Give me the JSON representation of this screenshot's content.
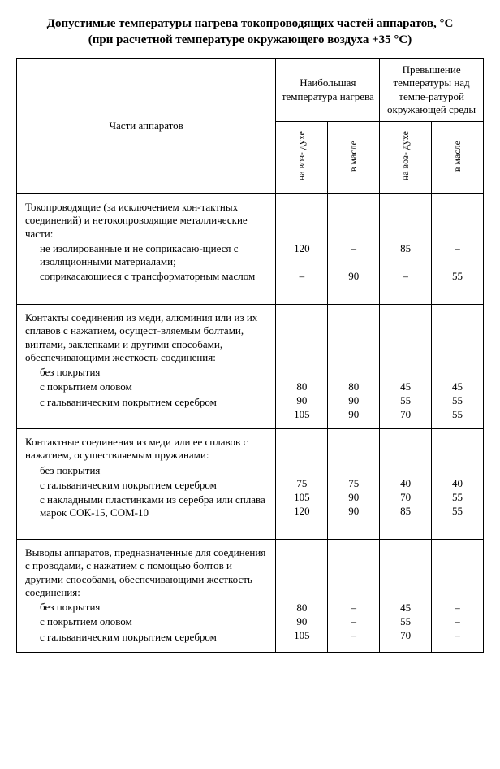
{
  "title_line1": "Допустимые температуры нагрева токопроводящих частей аппаратов, °С",
  "title_line2": "(при расчетной температуре окружающего воздуха +35 °С)",
  "headers": {
    "parts": "Части аппаратов",
    "group_max": "Наибольшая температура нагрева",
    "group_excess": "Превышение температуры над темпе-ратурой окружающей среды",
    "air": "на воз-\nдухе",
    "oil": "в масле"
  },
  "sections": [
    {
      "lead": "Токопроводящие (за исключением кон-тактных соединений) и нетокопроводящие металлические части:",
      "lead_lines": 3,
      "items": [
        {
          "label": "не изолированные и не соприкасаю-щиеся с изоляционными материалами;",
          "lines": 2,
          "v": [
            "120",
            "–",
            "85",
            "–"
          ]
        },
        {
          "label": "соприкасающиеся с трансформаторным маслом",
          "lines": 2,
          "v": [
            "–",
            "90",
            "–",
            "55"
          ]
        }
      ]
    },
    {
      "lead": "Контакты соединения из меди, алюминия или из их сплавов с нажатием, осущест-вляемым болтами, винтами, заклепками и другими способами, обеспечивающими жесткость соединения:",
      "lead_lines": 5,
      "items": [
        {
          "label": "без покрытия",
          "lines": 1,
          "v": [
            "80",
            "80",
            "45",
            "45"
          ]
        },
        {
          "label": "с покрытием оловом",
          "lines": 1,
          "v": [
            "90",
            "90",
            "55",
            "55"
          ]
        },
        {
          "label": "с гальваническим покрытием серебром",
          "lines": 1,
          "v": [
            "105",
            "90",
            "70",
            "55"
          ]
        }
      ]
    },
    {
      "lead": "Контактные соединения из меди или ее сплавов с нажатием, осуществляемым пружинами:",
      "lead_lines": 3,
      "items": [
        {
          "label": "без покрытия",
          "lines": 1,
          "v": [
            "75",
            "75",
            "40",
            "40"
          ]
        },
        {
          "label": "с гальваническим покрытием серебром",
          "lines": 1,
          "v": [
            "105",
            "90",
            "70",
            "55"
          ]
        },
        {
          "label": "с накладными пластинками из серебра или сплава марок СОК-15, СОМ-10",
          "lines": 2,
          "v": [
            "120",
            "90",
            "85",
            "55"
          ]
        }
      ]
    },
    {
      "lead": "Выводы аппаратов, предназначенные для соединения с проводами, с нажатием с помощью болтов и другими способами, обеспечивающими жесткость соединения:",
      "lead_lines": 4,
      "items": [
        {
          "label": "без покрытия",
          "lines": 1,
          "v": [
            "80",
            "–",
            "45",
            "–"
          ]
        },
        {
          "label": "с покрытием оловом",
          "lines": 1,
          "v": [
            "90",
            "–",
            "55",
            "–"
          ]
        },
        {
          "label": "с гальваническим покрытием серебром",
          "lines": 1,
          "v": [
            "105",
            "–",
            "70",
            "–"
          ]
        }
      ]
    }
  ]
}
